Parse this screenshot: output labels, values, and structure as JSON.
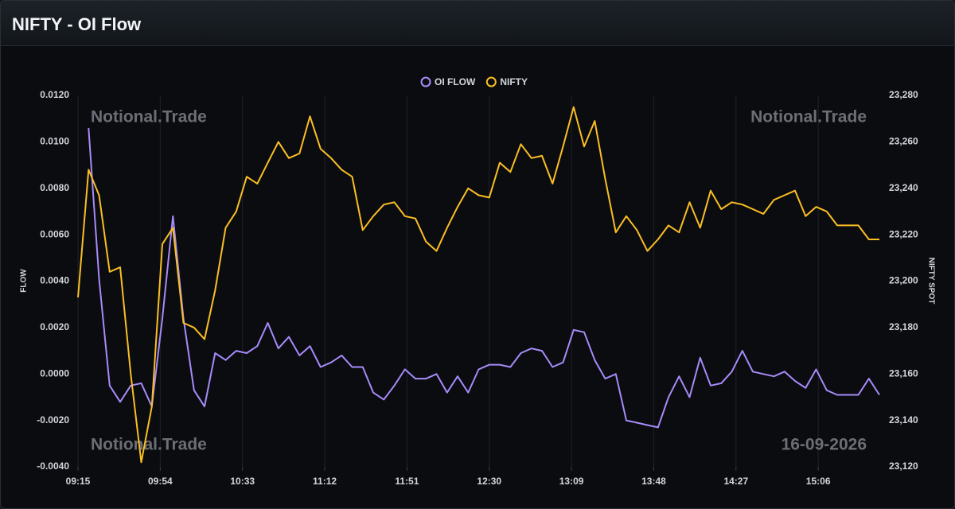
{
  "header": {
    "title": "NIFTY - OI Flow"
  },
  "chart_data": {
    "type": "line",
    "y_label": "FLOW",
    "y2_label": "NIFTY SPOT",
    "watermarks": [
      "Notional.Trade",
      "Notional.Trade",
      "Notional.Trade",
      "16-09-2026"
    ],
    "x": [
      "09:15",
      "09:20",
      "09:25",
      "09:30",
      "09:35",
      "09:40",
      "09:45",
      "09:50",
      "09:55",
      "10:00",
      "10:05",
      "10:10",
      "10:15",
      "10:20",
      "10:25",
      "10:30",
      "10:35",
      "10:40",
      "10:45",
      "10:50",
      "10:55",
      "11:00",
      "11:05",
      "11:10",
      "11:15",
      "11:20",
      "11:25",
      "11:30",
      "11:35",
      "11:40",
      "11:45",
      "11:50",
      "11:55",
      "12:00",
      "12:05",
      "12:10",
      "12:15",
      "12:20",
      "12:25",
      "12:30",
      "12:35",
      "12:40",
      "12:45",
      "12:50",
      "12:55",
      "13:00",
      "13:05",
      "13:10",
      "13:15",
      "13:20",
      "13:25",
      "13:30",
      "13:35",
      "13:40",
      "13:45",
      "13:50",
      "13:55",
      "14:00",
      "14:05",
      "14:10",
      "14:15",
      "14:20",
      "14:25",
      "14:30",
      "14:35",
      "14:40",
      "14:45",
      "14:50",
      "14:55",
      "15:00",
      "15:05",
      "15:10",
      "15:15",
      "15:20",
      "15:25",
      "15:30",
      "15:35"
    ],
    "xlim": [
      "09:15",
      "15:35"
    ],
    "xticks": [
      "09:15",
      "09:54",
      "10:33",
      "11:12",
      "11:51",
      "12:30",
      "13:09",
      "13:48",
      "14:27",
      "15:06"
    ],
    "ylim": [
      -0.004,
      0.012
    ],
    "yticks": [
      {
        "value": -0.004,
        "label": "-0.0040"
      },
      {
        "value": -0.002,
        "label": "-0.0020"
      },
      {
        "value": 0,
        "label": "0.0000"
      },
      {
        "value": 0.002,
        "label": "0.0020"
      },
      {
        "value": 0.004,
        "label": "0.0040"
      },
      {
        "value": 0.006,
        "label": "0.0060"
      },
      {
        "value": 0.008,
        "label": "0.0080"
      },
      {
        "value": 0.01,
        "label": "0.0100"
      },
      {
        "value": 0.012,
        "label": "0.0120"
      }
    ],
    "y2lim": [
      23120,
      23280
    ],
    "y2ticks": [
      {
        "value": 23120,
        "label": "23,120"
      },
      {
        "value": 23140,
        "label": "23,140"
      },
      {
        "value": 23160,
        "label": "23,160"
      },
      {
        "value": 23180,
        "label": "23,180"
      },
      {
        "value": 23200,
        "label": "23,200"
      },
      {
        "value": 23220,
        "label": "23,220"
      },
      {
        "value": 23240,
        "label": "23,240"
      },
      {
        "value": 23260,
        "label": "23,260"
      },
      {
        "value": 23280,
        "label": "23,280"
      }
    ],
    "xgrid": true,
    "series": [
      {
        "name": "OI FLOW",
        "color": "#a78bfa",
        "axis": "y",
        "values": [
          null,
          0.0106,
          0.0041,
          -0.0005,
          -0.0012,
          -0.0005,
          -0.0004,
          -0.0014,
          0.0024,
          0.0068,
          0.0024,
          -0.0007,
          -0.0014,
          0.0009,
          0.0006,
          0.001,
          0.0009,
          0.0012,
          0.0022,
          0.0011,
          0.0016,
          0.0008,
          0.0012,
          0.0003,
          0.0005,
          0.0008,
          0.0003,
          0.0003,
          -0.0008,
          -0.0011,
          -0.0005,
          0.0002,
          -0.0002,
          -0.0002,
          0,
          -0.0008,
          -0.0001,
          -0.0008,
          0.0002,
          0.0004,
          0.0004,
          0.0003,
          0.0009,
          0.0011,
          0.001,
          0.0003,
          0.0005,
          0.0019,
          0.0018,
          0.0006,
          -0.0002,
          0,
          -0.002,
          -0.0021,
          -0.0022,
          -0.0023,
          -0.001,
          -0.0001,
          -0.001,
          0.0007,
          -0.0005,
          -0.0004,
          0.0001,
          0.001,
          0.0001,
          0,
          -0.0001,
          0.0001,
          -0.0003,
          -0.0006,
          0.0002,
          -0.0007,
          -0.0009,
          -0.0009,
          -0.0009,
          -0.0002,
          -0.0009
        ]
      },
      {
        "name": "NIFTY",
        "color": "#fbbf24",
        "axis": "y2",
        "values": [
          23193,
          23248,
          23237,
          23204,
          23206,
          23160,
          23122,
          23146,
          23216,
          23223,
          23182,
          23180,
          23175,
          23196,
          23223,
          23230,
          23245,
          23242,
          23251,
          23260,
          23253,
          23255,
          23271,
          23257,
          23253,
          23248,
          23245,
          23222,
          23228,
          23233,
          23234,
          23228,
          23227,
          23217,
          23213,
          23223,
          23232,
          23240,
          23237,
          23236,
          23251,
          23247,
          23259,
          23253,
          23254,
          23242,
          23258,
          23275,
          23258,
          23269,
          23244,
          23221,
          23228,
          23222,
          23213,
          23218,
          23224,
          23221,
          23234,
          23223,
          23239,
          23231,
          23234,
          23233,
          23231,
          23229,
          23235,
          23237,
          23239,
          23228,
          23232,
          23230,
          23224,
          23224,
          23224,
          23218,
          23218
        ]
      }
    ]
  }
}
